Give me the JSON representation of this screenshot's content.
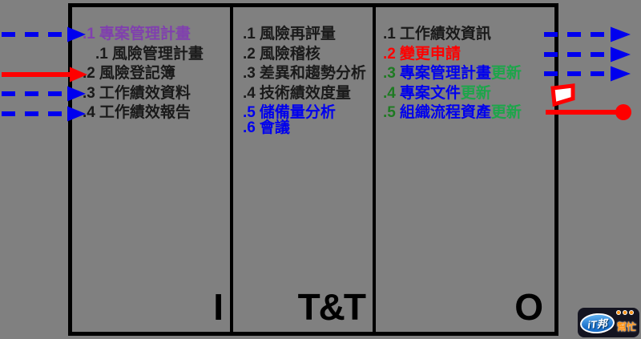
{
  "colors": {
    "background": "#808080",
    "border": "#000000",
    "black": "#1a1a1a",
    "purple": "#8040AE",
    "blue": "#0000EE",
    "red": "#FF0000",
    "dark_green": "#1E7A22",
    "green": "#1CA64A"
  },
  "columns": [
    {
      "label": "I",
      "items": [
        {
          "num": ".1",
          "text": "專案管理計畫",
          "color": "purple"
        },
        {
          "num": ".1",
          "text": "風險管理計畫",
          "color": "black",
          "indent": true
        },
        {
          "num": ".2",
          "text": "風險登記簿",
          "color": "black"
        },
        {
          "num": ".3",
          "text": "工作績效資料",
          "color": "black"
        },
        {
          "num": ".4",
          "text": "工作績效報告",
          "color": "black"
        }
      ]
    },
    {
      "label": "T&T",
      "items": [
        {
          "num": ".1",
          "text": "風險再評量",
          "color": "black"
        },
        {
          "num": ".2",
          "text": "風險稽核",
          "color": "black"
        },
        {
          "num": ".3",
          "text": "差異和趨勢分析",
          "color": "black"
        },
        {
          "num": ".4",
          "text": "技術績效度量",
          "color": "black"
        },
        {
          "num": ".5",
          "text": "儲備量分析",
          "color": "blue"
        },
        {
          "num": ".6",
          "text": "會議",
          "color": "blue",
          "tight": true
        }
      ]
    },
    {
      "label": "O",
      "items": [
        {
          "num": ".1",
          "text": "工作績效資訊",
          "color": "black"
        },
        {
          "num": ".2",
          "text": "變更申請",
          "color": "red"
        },
        {
          "num": ".3",
          "text": "專案管理計畫",
          "suffix": "更新",
          "color": "blue",
          "num_color": "dark_green",
          "suffix_color": "green"
        },
        {
          "num": ".4",
          "text": "專案文件",
          "suffix": "更新",
          "color": "blue",
          "num_color": "dark_green",
          "suffix_color": "green"
        },
        {
          "num": ".5",
          "text": "組織流程資產",
          "suffix": "更新",
          "color": "blue",
          "num_color": "dark_green",
          "suffix_color": "green"
        }
      ]
    }
  ],
  "arrows": {
    "input": [
      {
        "target": ".1",
        "style": "dashed",
        "color": "blue"
      },
      {
        "target": ".2",
        "style": "solid",
        "color": "red"
      },
      {
        "target": ".3",
        "style": "dashed",
        "color": "blue"
      },
      {
        "target": ".4",
        "style": "dashed",
        "color": "blue"
      }
    ],
    "output": [
      {
        "target": ".1",
        "style": "dashed",
        "color": "blue"
      },
      {
        "target": ".2",
        "style": "dashed",
        "color": "blue"
      },
      {
        "target": ".3",
        "style": "dashed",
        "color": "blue"
      },
      {
        "target": ".4",
        "style": "flag",
        "color": "red"
      },
      {
        "target": ".5",
        "style": "solid-dot",
        "color": "red"
      }
    ]
  },
  "logo": {
    "brand": "iT邦",
    "badge": "幫忙"
  }
}
